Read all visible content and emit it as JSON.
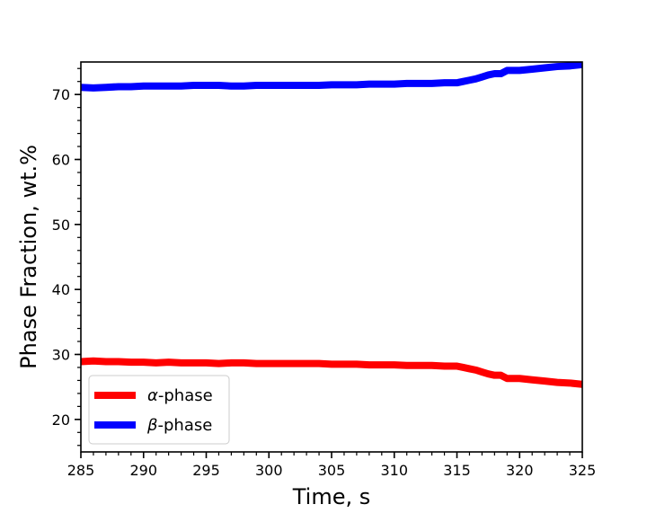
{
  "chart_data": {
    "type": "line",
    "xlabel": "Time, s",
    "ylabel": "Phase Fraction, wt.%",
    "xlim": [
      285,
      325
    ],
    "ylim": [
      15,
      75
    ],
    "xticks": [
      285,
      290,
      295,
      300,
      305,
      310,
      315,
      320,
      325
    ],
    "yticks": [
      20,
      30,
      40,
      50,
      60,
      70
    ],
    "legend_position": "lower-left",
    "series": [
      {
        "name": "α-phase",
        "name_prefix": "α",
        "name_suffix": "-phase",
        "color": "#ff0000",
        "x": [
          285,
          286,
          287,
          288,
          289,
          290,
          291,
          292,
          293,
          294,
          295,
          296,
          297,
          298,
          299,
          300,
          301,
          302,
          303,
          304,
          305,
          306,
          307,
          308,
          309,
          310,
          311,
          312,
          313,
          314,
          315,
          315.5,
          316,
          316.5,
          317,
          317.5,
          318,
          318.5,
          319,
          320,
          321,
          322,
          323,
          324,
          325
        ],
        "y": [
          28.9,
          29.0,
          28.9,
          28.9,
          28.8,
          28.8,
          28.7,
          28.8,
          28.7,
          28.7,
          28.7,
          28.6,
          28.7,
          28.7,
          28.6,
          28.6,
          28.6,
          28.6,
          28.6,
          28.6,
          28.5,
          28.5,
          28.5,
          28.4,
          28.4,
          28.4,
          28.3,
          28.3,
          28.3,
          28.2,
          28.2,
          28.0,
          27.8,
          27.6,
          27.3,
          27.0,
          26.8,
          26.8,
          26.3,
          26.3,
          26.1,
          25.9,
          25.7,
          25.6,
          25.4
        ]
      },
      {
        "name": "β-phase",
        "name_prefix": "β",
        "name_suffix": "-phase",
        "color": "#0000ff",
        "x": [
          285,
          286,
          287,
          288,
          289,
          290,
          291,
          292,
          293,
          294,
          295,
          296,
          297,
          298,
          299,
          300,
          301,
          302,
          303,
          304,
          305,
          306,
          307,
          308,
          309,
          310,
          311,
          312,
          313,
          314,
          315,
          315.5,
          316,
          316.5,
          317,
          317.5,
          318,
          318.5,
          319,
          320,
          321,
          322,
          323,
          324,
          325
        ],
        "y": [
          71.1,
          71.0,
          71.1,
          71.2,
          71.2,
          71.3,
          71.3,
          71.3,
          71.3,
          71.4,
          71.4,
          71.4,
          71.3,
          71.3,
          71.4,
          71.4,
          71.4,
          71.4,
          71.4,
          71.4,
          71.5,
          71.5,
          71.5,
          71.6,
          71.6,
          71.6,
          71.7,
          71.7,
          71.7,
          71.8,
          71.8,
          72.0,
          72.2,
          72.4,
          72.7,
          73.0,
          73.2,
          73.2,
          73.7,
          73.7,
          73.9,
          74.1,
          74.3,
          74.4,
          74.6
        ]
      }
    ]
  }
}
